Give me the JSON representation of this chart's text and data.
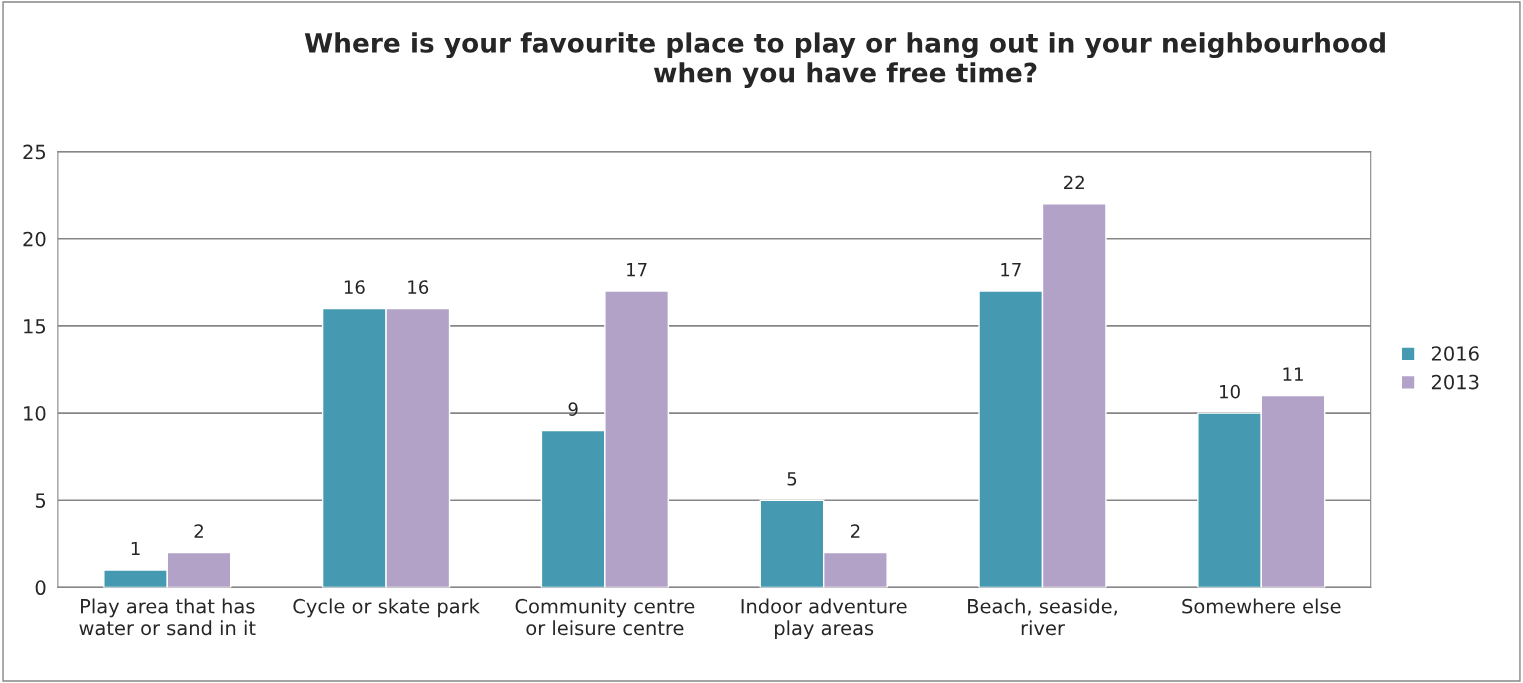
{
  "chart_data": {
    "type": "bar",
    "title": "Where is your favourite place to play or hang out in your neighbourhood\nwhen you have free time?",
    "categories": [
      "Play area that has\nwater or sand in it",
      "Cycle or skate park",
      "Community centre\nor leisure centre",
      "Indoor adventure\nplay areas",
      "Beach, seaside,\nriver",
      "Somewhere else"
    ],
    "series": [
      {
        "name": "2016",
        "color": "#4599b0",
        "values": [
          1,
          16,
          9,
          5,
          17,
          10
        ]
      },
      {
        "name": "2013",
        "color": "#b3a2c7",
        "values": [
          2,
          16,
          17,
          2,
          22,
          11
        ]
      }
    ],
    "ylim": [
      0,
      25
    ],
    "yticks": [
      0,
      5,
      10,
      15,
      20,
      25
    ],
    "grid": "y",
    "legend": "right",
    "data_labels": true
  }
}
